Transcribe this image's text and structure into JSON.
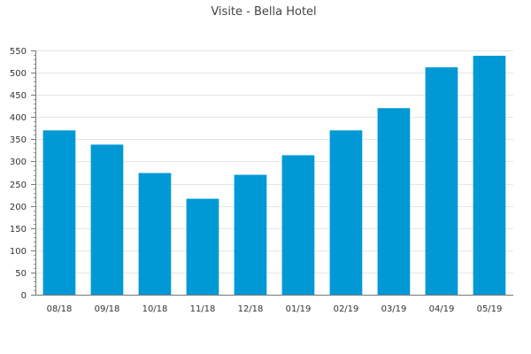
{
  "chart_data": {
    "type": "bar",
    "title": "Visite - Bella Hotel",
    "xlabel": "",
    "ylabel": "",
    "categories": [
      "08/18",
      "09/18",
      "10/18",
      "11/18",
      "12/18",
      "01/19",
      "02/19",
      "03/19",
      "04/19",
      "05/19"
    ],
    "values": [
      370,
      338,
      274,
      216,
      270,
      314,
      370,
      420,
      512,
      538
    ],
    "ylim": [
      0,
      550
    ],
    "yticks": [
      0,
      50,
      100,
      150,
      200,
      250,
      300,
      350,
      400,
      450,
      500,
      550
    ],
    "grid": true,
    "bar_color": "#0099d5"
  }
}
